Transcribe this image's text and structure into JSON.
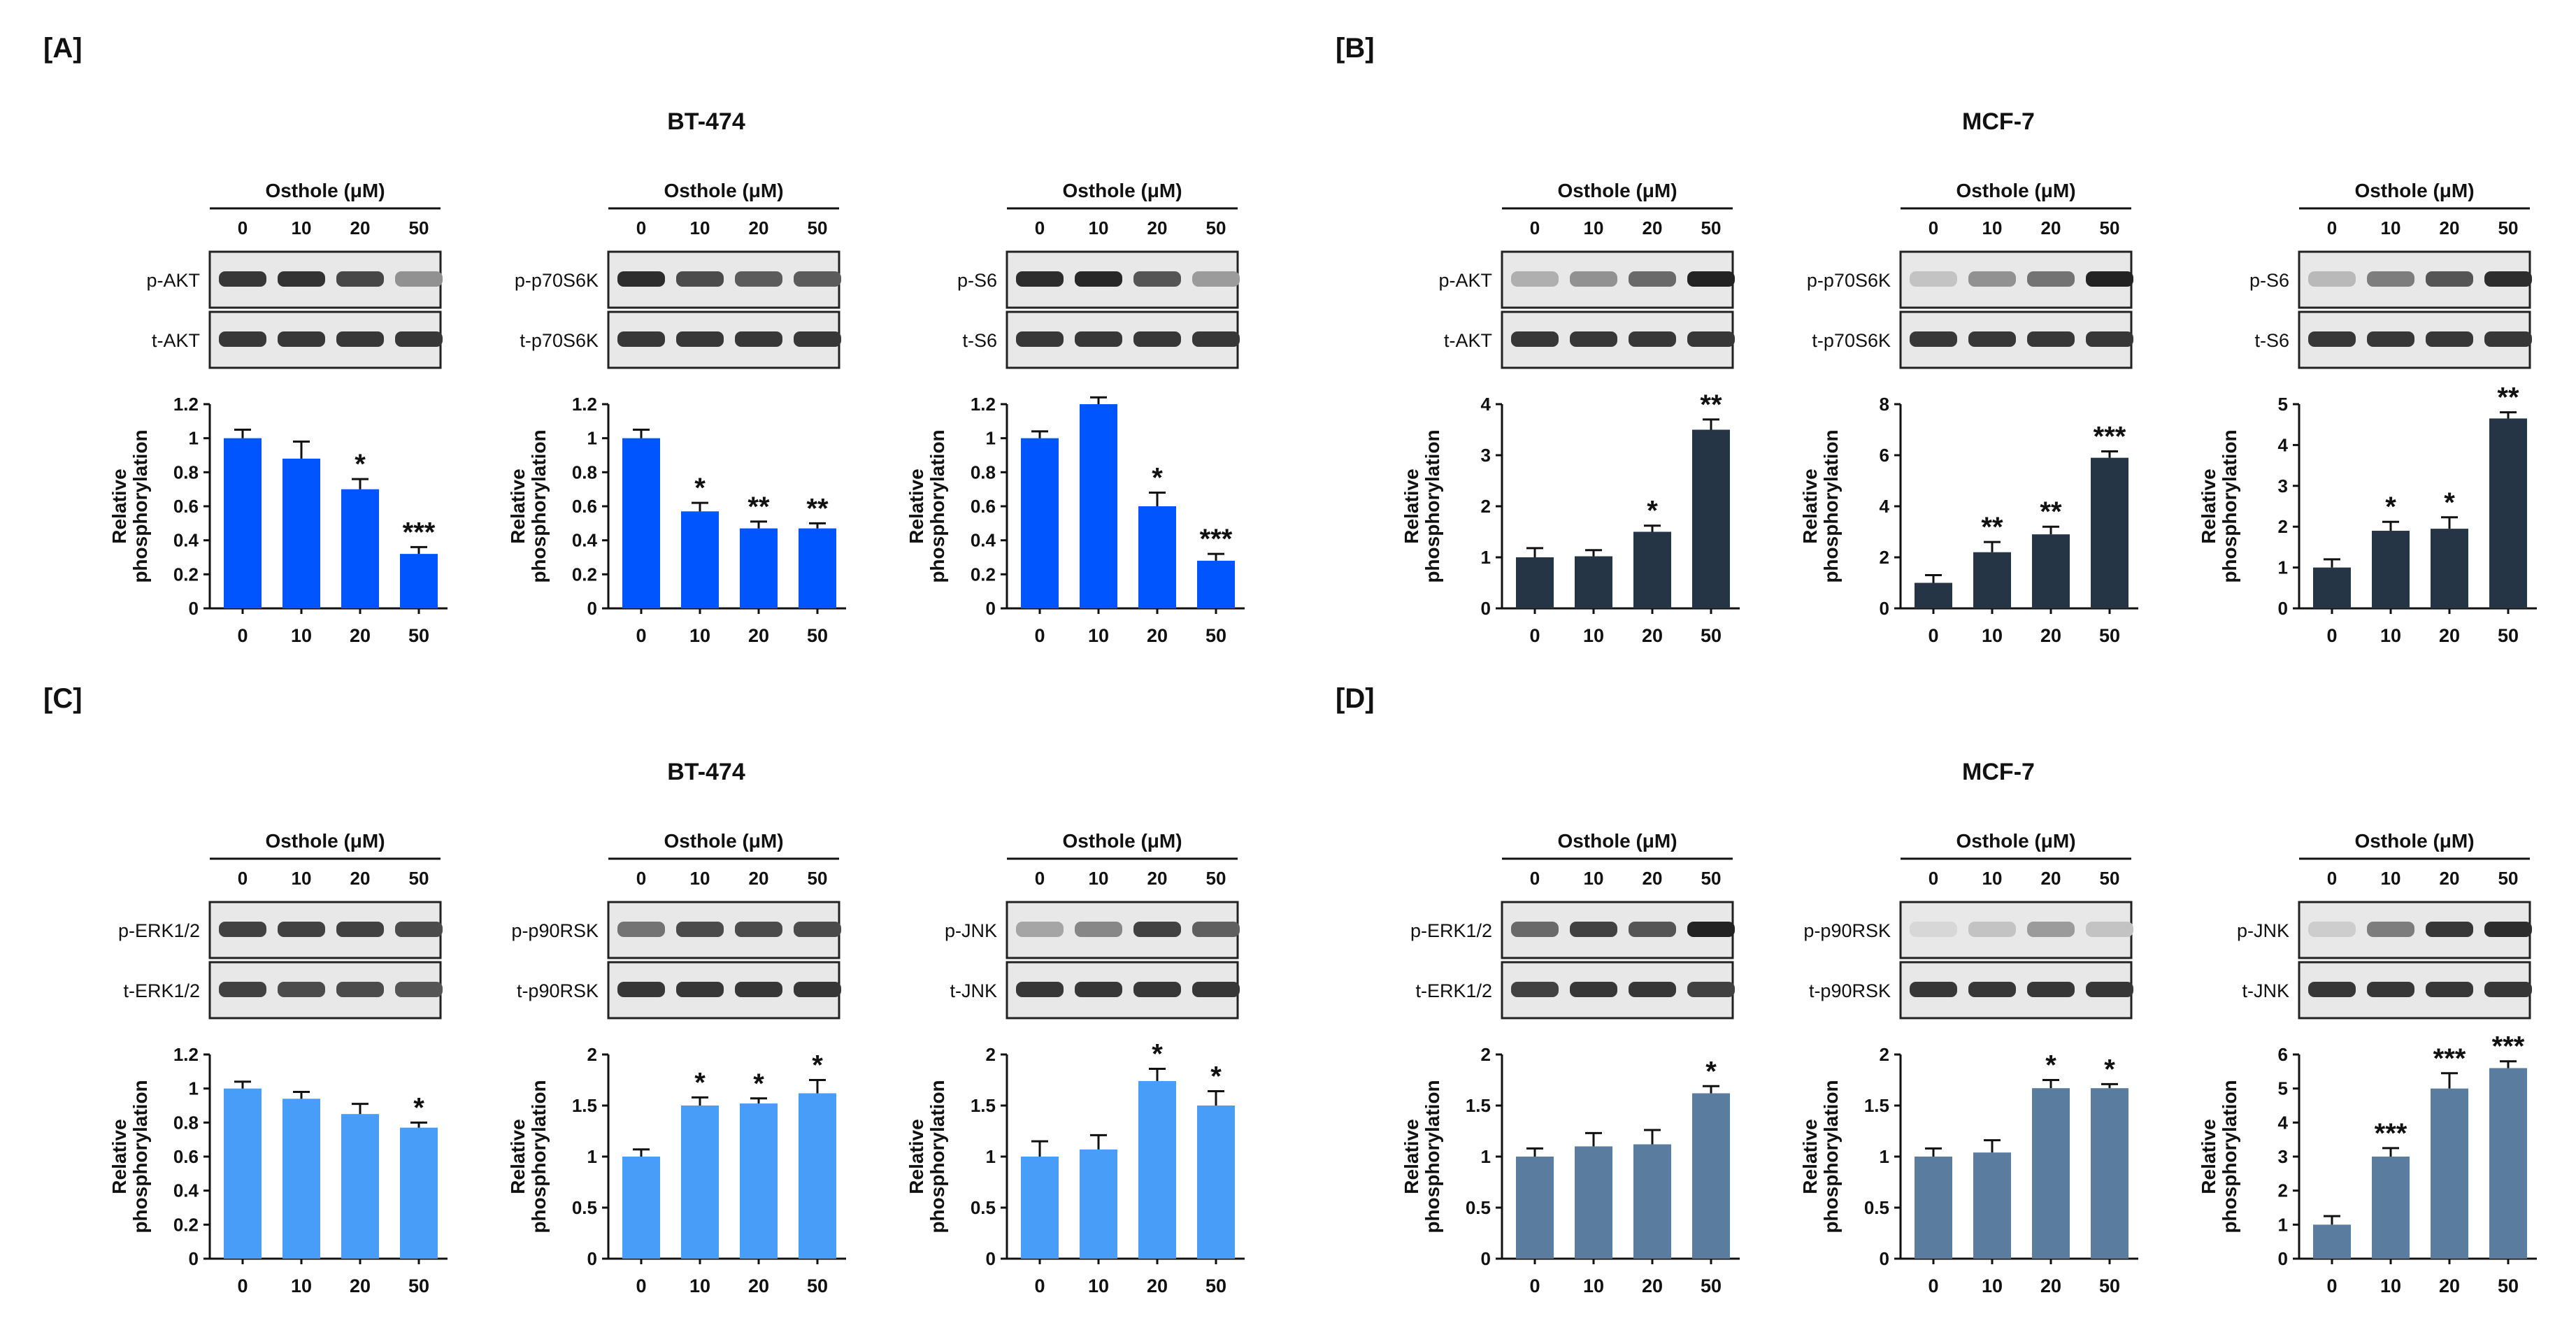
{
  "figure": {
    "panels": [
      {
        "label": "[A]",
        "cell_line": "BT-474",
        "bar_color": "#0055ff"
      },
      {
        "label": "[B]",
        "cell_line": "MCF-7",
        "bar_color": "#253546"
      },
      {
        "label": "[C]",
        "cell_line": "BT-474",
        "bar_color": "#479df7"
      },
      {
        "label": "[D]",
        "cell_line": "MCF-7",
        "bar_color": "#5a7d9f"
      }
    ],
    "treatment_label": "Osthole (μM)",
    "doses": [
      "0",
      "10",
      "20",
      "50"
    ],
    "y_axis_label_line1": "Relative",
    "y_axis_label_line2": "phosphorylation",
    "blot_rows": [
      [
        {
          "top": "p-AKT",
          "bottom": "t-AKT"
        },
        {
          "top": "p-p70S6K",
          "bottom": "t-p70S6K"
        },
        {
          "top": "p-S6",
          "bottom": "t-S6"
        }
      ],
      [
        {
          "top": "p-ERK1/2",
          "bottom": "t-ERK1/2"
        },
        {
          "top": "p-p90RSK",
          "bottom": "t-p90RSK"
        },
        {
          "top": "p-JNK",
          "bottom": "t-JNK"
        }
      ]
    ]
  },
  "chart_data": [
    {
      "panel": "A",
      "title": "p-AKT / t-AKT (BT-474)",
      "type": "bar",
      "categories": [
        "0",
        "10",
        "20",
        "50"
      ],
      "values": [
        1.0,
        0.88,
        0.7,
        0.32
      ],
      "errors": [
        0.05,
        0.1,
        0.06,
        0.04
      ],
      "significance": [
        "",
        "",
        "*",
        "***"
      ],
      "ylim": [
        0,
        1.2
      ],
      "yticks": [
        "0",
        "0.2",
        "0.4",
        "0.6",
        "0.8",
        "1",
        "1.2"
      ],
      "ylabel": "Relative phosphorylation"
    },
    {
      "panel": "A",
      "title": "p-p70S6K / t-p70S6K (BT-474)",
      "type": "bar",
      "categories": [
        "0",
        "10",
        "20",
        "50"
      ],
      "values": [
        1.0,
        0.57,
        0.47,
        0.47
      ],
      "errors": [
        0.05,
        0.05,
        0.04,
        0.03
      ],
      "significance": [
        "",
        "*",
        "**",
        "**"
      ],
      "ylim": [
        0,
        1.2
      ],
      "yticks": [
        "0",
        "0.2",
        "0.4",
        "0.6",
        "0.8",
        "1",
        "1.2"
      ],
      "ylabel": "Relative phosphorylation"
    },
    {
      "panel": "A",
      "title": "p-S6 / t-S6 (BT-474)",
      "type": "bar",
      "categories": [
        "0",
        "10",
        "20",
        "50"
      ],
      "values": [
        1.0,
        1.2,
        0.6,
        0.28
      ],
      "errors": [
        0.04,
        0.04,
        0.08,
        0.04
      ],
      "significance": [
        "",
        "",
        "*",
        "***"
      ],
      "ylim": [
        0,
        1.2
      ],
      "yticks": [
        "0",
        "0.2",
        "0.4",
        "0.6",
        "0.8",
        "1",
        "1.2"
      ],
      "ylabel": "Relative phosphorylation"
    },
    {
      "panel": "B",
      "title": "p-AKT / t-AKT (MCF-7)",
      "type": "bar",
      "categories": [
        "0",
        "10",
        "20",
        "50"
      ],
      "values": [
        1.0,
        1.02,
        1.5,
        3.5
      ],
      "errors": [
        0.18,
        0.12,
        0.12,
        0.2
      ],
      "significance": [
        "",
        "",
        "*",
        "**"
      ],
      "ylim": [
        0,
        4
      ],
      "yticks": [
        "0",
        "1",
        "2",
        "3",
        "4"
      ],
      "ylabel": "Relative phosphorylation"
    },
    {
      "panel": "B",
      "title": "p-p70S6K / t-p70S6K (MCF-7)",
      "type": "bar",
      "categories": [
        "0",
        "10",
        "20",
        "50"
      ],
      "values": [
        1.0,
        2.2,
        2.9,
        5.9
      ],
      "errors": [
        0.3,
        0.4,
        0.3,
        0.25
      ],
      "significance": [
        "",
        "**",
        "**",
        "***"
      ],
      "ylim": [
        0,
        8
      ],
      "yticks": [
        "0",
        "2",
        "4",
        "6",
        "8"
      ],
      "ylabel": "Relative phosphorylation"
    },
    {
      "panel": "B",
      "title": "p-S6 / t-S6 (MCF-7)",
      "type": "bar",
      "categories": [
        "0",
        "10",
        "20",
        "50"
      ],
      "values": [
        1.0,
        1.9,
        1.95,
        4.65
      ],
      "errors": [
        0.2,
        0.22,
        0.28,
        0.15
      ],
      "significance": [
        "",
        "*",
        "*",
        "**"
      ],
      "ylim": [
        0,
        5
      ],
      "yticks": [
        "0",
        "1",
        "2",
        "3",
        "4",
        "5"
      ],
      "ylabel": "Relative phosphorylation"
    },
    {
      "panel": "C",
      "title": "p-ERK1/2 / t-ERK1/2 (BT-474)",
      "type": "bar",
      "categories": [
        "0",
        "10",
        "20",
        "50"
      ],
      "values": [
        1.0,
        0.94,
        0.85,
        0.77
      ],
      "errors": [
        0.04,
        0.04,
        0.06,
        0.03
      ],
      "significance": [
        "",
        "",
        "",
        "*"
      ],
      "ylim": [
        0,
        1.2
      ],
      "yticks": [
        "0",
        "0.2",
        "0.4",
        "0.6",
        "0.8",
        "1",
        "1.2"
      ],
      "ylabel": "Relative phosphorylation"
    },
    {
      "panel": "C",
      "title": "p-p90RSK / t-p90RSK (BT-474)",
      "type": "bar",
      "categories": [
        "0",
        "10",
        "20",
        "50"
      ],
      "values": [
        1.0,
        1.5,
        1.52,
        1.62
      ],
      "errors": [
        0.07,
        0.08,
        0.05,
        0.13
      ],
      "significance": [
        "",
        "*",
        "*",
        "*"
      ],
      "ylim": [
        0,
        2
      ],
      "yticks": [
        "0",
        "0.5",
        "1",
        "1.5",
        "2"
      ],
      "ylabel": "Relative phosphorylation"
    },
    {
      "panel": "C",
      "title": "p-JNK / t-JNK (BT-474)",
      "type": "bar",
      "categories": [
        "0",
        "10",
        "20",
        "50"
      ],
      "values": [
        1.0,
        1.07,
        1.74,
        1.5
      ],
      "errors": [
        0.15,
        0.14,
        0.12,
        0.14
      ],
      "significance": [
        "",
        "",
        "*",
        "*"
      ],
      "ylim": [
        0,
        2
      ],
      "yticks": [
        "0",
        "0.5",
        "1",
        "1.5",
        "2"
      ],
      "ylabel": "Relative phosphorylation"
    },
    {
      "panel": "D",
      "title": "p-ERK1/2 / t-ERK1/2 (MCF-7)",
      "type": "bar",
      "categories": [
        "0",
        "10",
        "20",
        "50"
      ],
      "values": [
        1.0,
        1.1,
        1.12,
        1.62
      ],
      "errors": [
        0.08,
        0.13,
        0.14,
        0.07
      ],
      "significance": [
        "",
        "",
        "",
        "*"
      ],
      "ylim": [
        0,
        2
      ],
      "yticks": [
        "0",
        "0.5",
        "1",
        "1.5",
        "2"
      ],
      "ylabel": "Relative phosphorylation"
    },
    {
      "panel": "D",
      "title": "p-p90RSK / t-p90RSK (MCF-7)",
      "type": "bar",
      "categories": [
        "0",
        "10",
        "20",
        "50"
      ],
      "values": [
        1.0,
        1.04,
        1.67,
        1.67
      ],
      "errors": [
        0.08,
        0.12,
        0.08,
        0.04
      ],
      "significance": [
        "",
        "",
        "*",
        "*"
      ],
      "ylim": [
        0,
        2
      ],
      "yticks": [
        "0",
        "0.5",
        "1",
        "1.5",
        "2"
      ],
      "ylabel": "Relative phosphorylation"
    },
    {
      "panel": "D",
      "title": "p-JNK / t-JNK (MCF-7)",
      "type": "bar",
      "categories": [
        "0",
        "10",
        "20",
        "50"
      ],
      "values": [
        1.0,
        3.0,
        5.0,
        5.6
      ],
      "errors": [
        0.25,
        0.25,
        0.45,
        0.2
      ],
      "significance": [
        "",
        "***",
        "***",
        "***"
      ],
      "ylim": [
        0,
        6
      ],
      "yticks": [
        "0",
        "1",
        "2",
        "3",
        "4",
        "5",
        "6"
      ],
      "ylabel": "Relative phosphorylation"
    }
  ],
  "blot_intensity": [
    [
      [
        [
          0.9,
          0.92,
          0.82,
          0.45
        ],
        [
          0.9,
          0.9,
          0.9,
          0.9
        ]
      ],
      [
        [
          0.95,
          0.8,
          0.72,
          0.72
        ],
        [
          0.9,
          0.9,
          0.9,
          0.9
        ]
      ],
      [
        [
          0.95,
          0.98,
          0.75,
          0.4
        ],
        [
          0.9,
          0.9,
          0.9,
          0.9
        ]
      ]
    ],
    [
      [
        [
          0.3,
          0.45,
          0.65,
          1.0
        ],
        [
          0.9,
          0.9,
          0.9,
          0.9
        ]
      ],
      [
        [
          0.2,
          0.45,
          0.6,
          1.0
        ],
        [
          0.9,
          0.9,
          0.9,
          0.9
        ]
      ],
      [
        [
          0.25,
          0.55,
          0.75,
          0.95
        ],
        [
          0.9,
          0.9,
          0.9,
          0.9
        ]
      ]
    ],
    [
      [
        [
          0.85,
          0.85,
          0.85,
          0.8
        ],
        [
          0.85,
          0.8,
          0.8,
          0.75
        ]
      ],
      [
        [
          0.6,
          0.8,
          0.8,
          0.8
        ],
        [
          0.9,
          0.9,
          0.9,
          0.9
        ]
      ],
      [
        [
          0.35,
          0.5,
          0.85,
          0.7
        ],
        [
          0.9,
          0.9,
          0.9,
          0.9
        ]
      ]
    ],
    [
      [
        [
          0.65,
          0.85,
          0.75,
          1.0
        ],
        [
          0.85,
          0.9,
          0.9,
          0.85
        ]
      ],
      [
        [
          0.1,
          0.2,
          0.4,
          0.2
        ],
        [
          0.9,
          0.9,
          0.9,
          0.9
        ]
      ],
      [
        [
          0.15,
          0.55,
          0.9,
          0.95
        ],
        [
          0.9,
          0.9,
          0.9,
          0.9
        ]
      ]
    ]
  ]
}
